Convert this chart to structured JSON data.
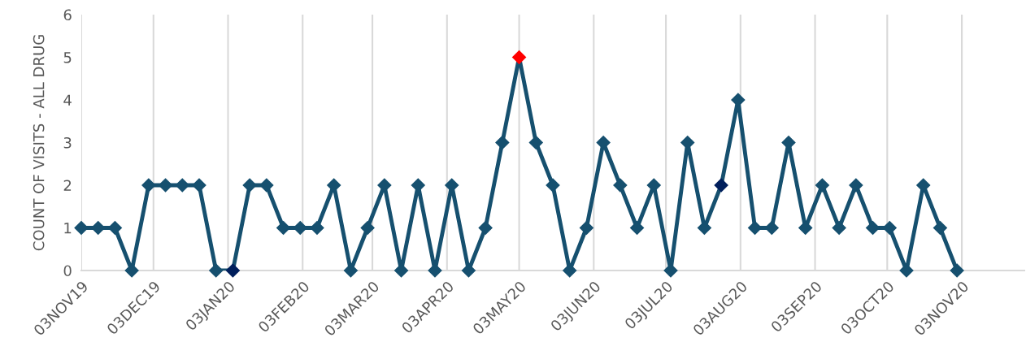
{
  "chart_data": {
    "type": "line",
    "ylabel": "COUNT OF VISITS - ALL DRUG",
    "x": [
      "2019-11-03",
      "2019-11-10",
      "2019-11-17",
      "2019-11-24",
      "2019-12-01",
      "2019-12-08",
      "2019-12-15",
      "2019-12-22",
      "2019-12-29",
      "2020-01-05",
      "2020-01-12",
      "2020-01-19",
      "2020-01-26",
      "2020-02-02",
      "2020-02-09",
      "2020-02-16",
      "2020-02-23",
      "2020-03-01",
      "2020-03-08",
      "2020-03-15",
      "2020-03-22",
      "2020-03-29",
      "2020-04-05",
      "2020-04-12",
      "2020-04-19",
      "2020-04-26",
      "2020-05-03",
      "2020-05-10",
      "2020-05-17",
      "2020-05-24",
      "2020-05-31",
      "2020-06-07",
      "2020-06-14",
      "2020-06-21",
      "2020-06-28",
      "2020-07-05",
      "2020-07-12",
      "2020-07-19",
      "2020-07-26",
      "2020-08-02",
      "2020-08-09",
      "2020-08-16",
      "2020-08-23",
      "2020-08-30",
      "2020-09-06",
      "2020-09-13",
      "2020-09-20",
      "2020-09-27",
      "2020-10-04",
      "2020-10-11",
      "2020-10-18",
      "2020-10-25",
      "2020-11-01"
    ],
    "series": [
      {
        "color": "#16506f",
        "values": [
          1,
          1,
          1,
          0,
          2,
          2,
          2,
          2,
          0,
          0,
          2,
          2,
          1,
          1,
          1,
          2,
          0,
          1,
          2,
          0,
          2,
          0,
          2,
          0,
          1,
          3,
          5,
          3,
          2,
          0,
          1,
          3,
          2,
          1,
          2,
          0,
          3,
          1,
          2,
          4,
          1,
          1,
          3,
          1,
          2,
          1,
          2,
          1,
          1,
          0,
          2,
          1,
          0
        ],
        "colors": [
          "#16506f",
          "#16506f",
          "#16506f",
          "#16506f",
          "#16506f",
          "#16506f",
          "#16506f",
          "#16506f",
          "#16506f",
          "#001f5c",
          "#16506f",
          "#16506f",
          "#16506f",
          "#16506f",
          "#16506f",
          "#16506f",
          "#16506f",
          "#16506f",
          "#16506f",
          "#16506f",
          "#16506f",
          "#16506f",
          "#16506f",
          "#16506f",
          "#16506f",
          "#16506f",
          "#ff0000",
          "#16506f",
          "#16506f",
          "#16506f",
          "#16506f",
          "#16506f",
          "#16506f",
          "#16506f",
          "#16506f",
          "#16506f",
          "#16506f",
          "#16506f",
          "#001f5c",
          "#16506f",
          "#16506f",
          "#16506f",
          "#16506f",
          "#16506f",
          "#16506f",
          "#16506f",
          "#16506f",
          "#16506f",
          "#16506f",
          "#16506f",
          "#16506f",
          "#16506f",
          "#16506f"
        ]
      }
    ],
    "xlim": [
      "2019-11-03",
      "2020-11-29"
    ],
    "xticks": [
      {
        "value": "2019-11-03",
        "label": "03NOV19"
      },
      {
        "value": "2019-12-03",
        "label": "03DEC19"
      },
      {
        "value": "2020-01-03",
        "label": "03JAN20"
      },
      {
        "value": "2020-02-03",
        "label": "03FEB20"
      },
      {
        "value": "2020-03-03",
        "label": "03MAR20"
      },
      {
        "value": "2020-04-03",
        "label": "03APR20"
      },
      {
        "value": "2020-05-03",
        "label": "03MAY20"
      },
      {
        "value": "2020-06-03",
        "label": "03JUN20"
      },
      {
        "value": "2020-07-03",
        "label": "03JUL20"
      },
      {
        "value": "2020-08-03",
        "label": "03AUG20"
      },
      {
        "value": "2020-09-03",
        "label": "03SEP20"
      },
      {
        "value": "2020-10-03",
        "label": "03OCT20"
      },
      {
        "value": "2020-11-03",
        "label": "03NOV20"
      }
    ],
    "ylim": [
      0,
      6
    ],
    "yticks": [
      0,
      1,
      2,
      3,
      4,
      5,
      6
    ],
    "grid": "x",
    "marker": "diamond",
    "line_style": "solid"
  }
}
